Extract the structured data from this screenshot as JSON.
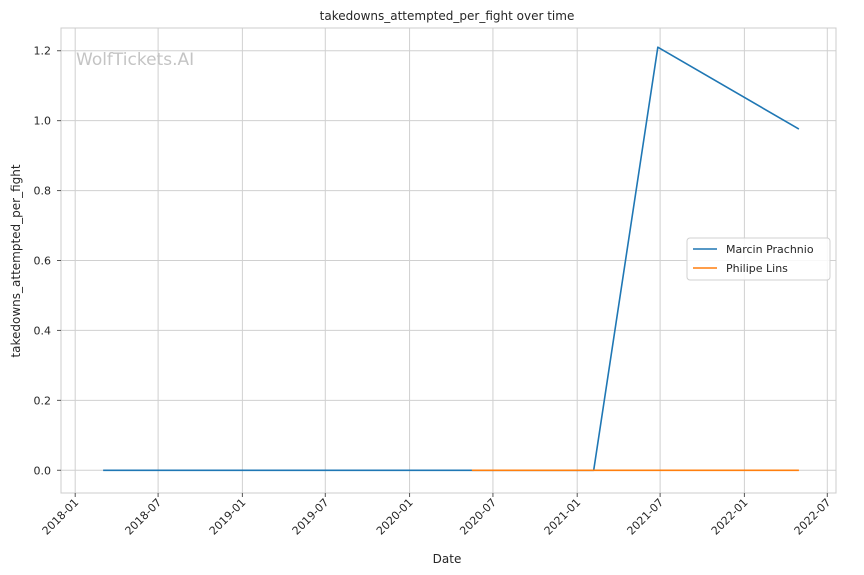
{
  "chart_data": {
    "type": "line",
    "title": "takedowns_attempted_per_fight over time",
    "xlabel": "Date",
    "ylabel": "takedowns_attempted_per_fight",
    "watermark": "WolfTickets.AI",
    "x_ticks": [
      "2018-01",
      "2018-07",
      "2019-01",
      "2019-07",
      "2020-01",
      "2020-07",
      "2021-01",
      "2021-07",
      "2022-01",
      "2022-07"
    ],
    "xlim": [
      "2017-12-01",
      "2022-07-20"
    ],
    "y_ticks": [
      "0.0",
      "0.2",
      "0.4",
      "0.6",
      "0.8",
      "1.0",
      "1.2"
    ],
    "ylim": [
      -0.065,
      1.265
    ],
    "grid": true,
    "legend_position": "center-right",
    "series": [
      {
        "name": "Marcin Prachnio",
        "color": "#1f77b4",
        "x": [
          "2018-03-03",
          "2021-02-06",
          "2021-06-26",
          "2022-04-30"
        ],
        "y": [
          0.0,
          0.0,
          1.21,
          0.976
        ]
      },
      {
        "name": "Philipe Lins",
        "color": "#ff7f0e",
        "x": [
          "2020-05-16",
          "2022-04-30"
        ],
        "y": [
          0.0,
          0.0
        ]
      }
    ]
  }
}
